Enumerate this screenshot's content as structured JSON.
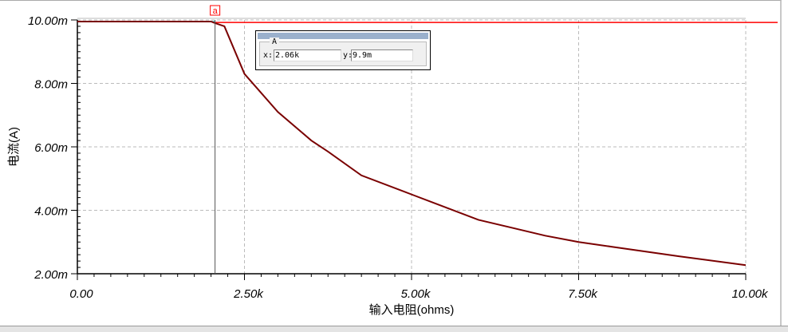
{
  "chart_data": {
    "type": "line",
    "xlabel": "输入电阻(ohms)",
    "ylabel": "电流(A)",
    "xlim": [
      0,
      10000
    ],
    "ylim": [
      0.002,
      0.01
    ],
    "x_ticks": [
      {
        "v": 0,
        "label": "0.00"
      },
      {
        "v": 2500,
        "label": "2.50k"
      },
      {
        "v": 5000,
        "label": "5.00k"
      },
      {
        "v": 7500,
        "label": "7.50k"
      },
      {
        "v": 10000,
        "label": "10.00k"
      }
    ],
    "y_ticks": [
      {
        "v": 0.002,
        "label": "2.00m"
      },
      {
        "v": 0.004,
        "label": "4.00m"
      },
      {
        "v": 0.006,
        "label": "6.00m"
      },
      {
        "v": 0.008,
        "label": "8.00m"
      },
      {
        "v": 0.01,
        "label": "10.00m"
      }
    ],
    "grid": true,
    "series": [
      {
        "color": "#7a0000",
        "x": [
          0,
          1000,
          2000,
          2060,
          2200,
          2500,
          3000,
          3500,
          3750,
          4250,
          5000,
          6000,
          7000,
          7500,
          8000,
          9000,
          10000
        ],
        "y": [
          0.00995,
          0.00995,
          0.00995,
          0.0099,
          0.0098,
          0.0083,
          0.0071,
          0.0062,
          0.00585,
          0.0051,
          0.0045,
          0.0037,
          0.0032,
          0.003,
          0.00285,
          0.00255,
          0.00227
        ]
      }
    ],
    "reference_line": {
      "y": 0.00992,
      "color": "#ff0000"
    },
    "cursor": {
      "marker": "a",
      "x": 2060,
      "color": "#ff0000"
    }
  },
  "cursor_box": {
    "title": "A",
    "x_label": "x:",
    "x_value": "2.06k",
    "y_label": "y:",
    "y_value": "9.9m"
  }
}
